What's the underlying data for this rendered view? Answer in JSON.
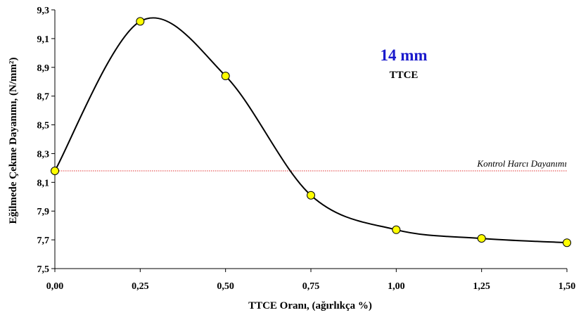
{
  "chart_data": {
    "type": "line",
    "xlabel": "TTCE Oranı, (ağırlıkça %)",
    "ylabel": "Eğilmede Çekme Dayanımı, (N/mm²)",
    "xlim": [
      0,
      1.5
    ],
    "ylim": [
      7.5,
      9.3
    ],
    "x_ticks": [
      "0,00",
      "0,25",
      "0,50",
      "0,75",
      "1,00",
      "1,25",
      "1,50"
    ],
    "y_ticks": [
      "7,5",
      "7,7",
      "7,9",
      "8,1",
      "8,3",
      "8,5",
      "8,7",
      "8,9",
      "9,1",
      "9,3"
    ],
    "x_tick_values": [
      0,
      0.25,
      0.5,
      0.75,
      1.0,
      1.25,
      1.5
    ],
    "y_tick_values": [
      7.5,
      7.7,
      7.9,
      8.1,
      8.3,
      8.5,
      8.7,
      8.9,
      9.1,
      9.3
    ],
    "grid": false,
    "smooth": true,
    "series": [
      {
        "x": [
          0,
          0.25,
          0.5,
          0.75,
          1.0,
          1.25,
          1.5
        ],
        "y": [
          8.18,
          9.22,
          8.84,
          8.01,
          7.77,
          7.71,
          7.68
        ],
        "line_color": "#000000",
        "marker_color": "#ffff00"
      }
    ],
    "reference_line": {
      "y": 8.18,
      "label": "Kontrol Harcı Dayanımı",
      "color": "#e03030"
    },
    "annotations": [
      {
        "text": "14 mm",
        "color": "#1a1acc"
      },
      {
        "text": "TTCE",
        "color": "#000000"
      }
    ]
  }
}
